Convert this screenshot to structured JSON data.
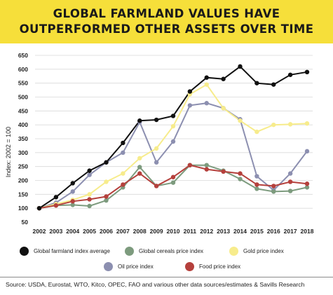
{
  "header": {
    "title_line1": "GLOBAL FARMLAND VALUES HAVE",
    "title_line2": "OUTPERFORMED OTHER ASSETS OVER TIME"
  },
  "colors": {
    "banner": "#f6df3a",
    "grid": "#d9d9d9"
  },
  "chart_data": {
    "type": "line",
    "ylabel": "Index: 2002 = 100",
    "xlabel": "",
    "ylim": [
      50,
      650
    ],
    "yticks": [
      50,
      100,
      150,
      200,
      250,
      300,
      350,
      400,
      450,
      500,
      550,
      600,
      650
    ],
    "x": [
      "2002",
      "2003",
      "2004",
      "2005",
      "2006",
      "2007",
      "2008",
      "2009",
      "2010",
      "2011",
      "2012",
      "2013",
      "2014",
      "2015",
      "2016",
      "2017",
      "2018"
    ],
    "grid": "horizontal",
    "legend_position": "bottom",
    "series": [
      {
        "name": "Oil price index",
        "color": "#8c8fb0",
        "values": [
          100,
          120,
          160,
          220,
          265,
          300,
          410,
          265,
          340,
          470,
          478,
          460,
          420,
          215,
          165,
          225,
          305
        ]
      },
      {
        "name": "Gold price index",
        "color": "#f7ec8c",
        "values": [
          100,
          115,
          130,
          150,
          195,
          225,
          280,
          315,
          395,
          510,
          545,
          460,
          415,
          375,
          400,
          402,
          405
        ]
      },
      {
        "name": "Global cereals price index",
        "color": "#7d9b7e",
        "values": [
          100,
          110,
          112,
          108,
          128,
          175,
          248,
          180,
          192,
          255,
          255,
          235,
          205,
          170,
          160,
          162,
          175
        ]
      },
      {
        "name": "Food price index",
        "color": "#b5403c",
        "values": [
          100,
          110,
          125,
          132,
          142,
          185,
          225,
          180,
          212,
          255,
          240,
          232,
          225,
          185,
          180,
          195,
          188
        ]
      },
      {
        "name": "Global farmland index average",
        "color": "#111111",
        "values": [
          100,
          140,
          190,
          235,
          265,
          335,
          415,
          418,
          432,
          520,
          570,
          565,
          610,
          550,
          545,
          580,
          590
        ]
      }
    ]
  },
  "legend": [
    {
      "label": "Global farmland index average",
      "color": "#111111"
    },
    {
      "label": "Global cereals price index",
      "color": "#7d9b7e"
    },
    {
      "label": "Gold price index",
      "color": "#f7ec8c"
    },
    {
      "label": "Oil price index",
      "color": "#8c8fb0"
    },
    {
      "label": "Food price index",
      "color": "#b5403c"
    }
  ],
  "source": "Source: USDA, Eurostat, WTO, Kitco, OPEC, FAO and various other data sources/estimates & Savills Research"
}
